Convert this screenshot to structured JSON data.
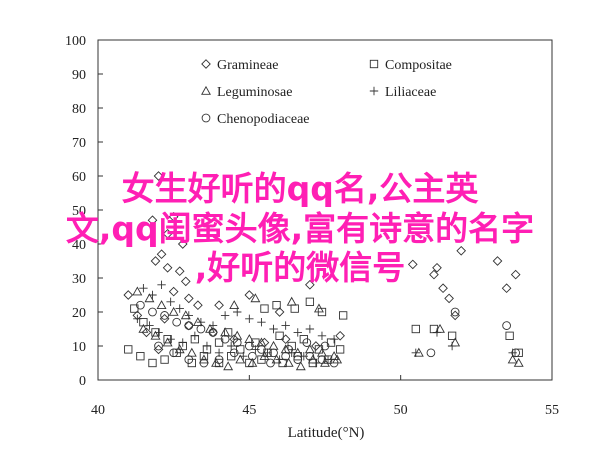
{
  "chart_data": {
    "type": "scatter",
    "xlabel": "Latitude(°N)",
    "ylabel": "",
    "xlim": [
      40,
      55
    ],
    "ylim": [
      0,
      100
    ],
    "xticks": [
      40,
      45,
      50,
      55
    ],
    "yticks": [
      0,
      10,
      20,
      30,
      40,
      50,
      60,
      70,
      80,
      90,
      100
    ],
    "grid": false,
    "legend_position": "top-center",
    "series": [
      {
        "name": "Gramineae",
        "marker": "diamond",
        "points": [
          [
            42.0,
            60
          ],
          [
            41.8,
            47
          ],
          [
            42.3,
            43
          ],
          [
            42.5,
            48
          ],
          [
            42.8,
            40
          ],
          [
            42.1,
            37
          ],
          [
            41.9,
            35
          ],
          [
            42.3,
            33
          ],
          [
            42.7,
            32
          ],
          [
            42.9,
            29
          ],
          [
            42.5,
            26
          ],
          [
            43.0,
            24
          ],
          [
            43.3,
            22
          ],
          [
            42.2,
            18
          ],
          [
            43.0,
            16
          ],
          [
            43.8,
            14
          ],
          [
            44.5,
            12
          ],
          [
            45.5,
            11
          ],
          [
            46.2,
            12
          ],
          [
            47.2,
            10
          ],
          [
            48.0,
            13
          ],
          [
            41.0,
            25
          ],
          [
            41.3,
            19
          ],
          [
            41.6,
            14
          ],
          [
            42.0,
            9
          ],
          [
            44.0,
            22
          ],
          [
            45.0,
            25
          ],
          [
            46.0,
            20
          ],
          [
            47.0,
            28
          ],
          [
            50.4,
            34
          ],
          [
            51.2,
            33
          ],
          [
            51.4,
            27
          ],
          [
            51.6,
            24
          ],
          [
            51.8,
            19
          ],
          [
            51.1,
            31
          ],
          [
            52.0,
            38
          ],
          [
            53.5,
            27
          ],
          [
            53.8,
            31
          ],
          [
            53.2,
            35
          ]
        ]
      },
      {
        "name": "Compositae",
        "marker": "square",
        "points": [
          [
            41.2,
            21
          ],
          [
            41.5,
            17
          ],
          [
            41.9,
            14
          ],
          [
            42.3,
            12
          ],
          [
            42.8,
            10
          ],
          [
            43.2,
            12
          ],
          [
            43.6,
            9
          ],
          [
            44.0,
            11
          ],
          [
            44.3,
            14
          ],
          [
            44.7,
            9
          ],
          [
            45.2,
            11
          ],
          [
            45.6,
            8
          ],
          [
            46.0,
            13
          ],
          [
            46.4,
            10
          ],
          [
            46.8,
            12
          ],
          [
            47.3,
            9
          ],
          [
            47.7,
            11
          ],
          [
            48.0,
            9
          ],
          [
            45.5,
            21
          ],
          [
            45.9,
            22
          ],
          [
            46.5,
            21
          ],
          [
            47.0,
            23
          ],
          [
            47.4,
            20
          ],
          [
            48.1,
            19
          ],
          [
            41.0,
            9
          ],
          [
            41.4,
            7
          ],
          [
            41.8,
            5
          ],
          [
            42.2,
            6
          ],
          [
            42.6,
            8
          ],
          [
            43.1,
            5
          ],
          [
            43.5,
            7
          ],
          [
            44.0,
            5
          ],
          [
            44.4,
            7
          ],
          [
            45.0,
            5
          ],
          [
            45.4,
            6
          ],
          [
            46.1,
            5
          ],
          [
            46.6,
            7
          ],
          [
            47.1,
            5
          ],
          [
            47.6,
            6
          ],
          [
            50.5,
            15
          ],
          [
            51.1,
            15
          ],
          [
            51.7,
            13
          ],
          [
            53.6,
            13
          ],
          [
            53.9,
            8
          ]
        ]
      },
      {
        "name": "Leguminosae",
        "marker": "triangle",
        "points": [
          [
            41.3,
            26
          ],
          [
            41.7,
            24
          ],
          [
            42.1,
            22
          ],
          [
            42.5,
            20
          ],
          [
            42.9,
            19
          ],
          [
            43.3,
            17
          ],
          [
            43.7,
            15
          ],
          [
            44.2,
            14
          ],
          [
            44.6,
            13
          ],
          [
            45.0,
            12
          ],
          [
            45.4,
            11
          ],
          [
            45.8,
            10
          ],
          [
            46.2,
            9
          ],
          [
            46.6,
            8
          ],
          [
            47.0,
            9
          ],
          [
            47.4,
            8
          ],
          [
            47.8,
            7
          ],
          [
            41.5,
            15
          ],
          [
            41.9,
            13
          ],
          [
            42.3,
            11
          ],
          [
            42.7,
            9
          ],
          [
            43.1,
            8
          ],
          [
            43.5,
            6
          ],
          [
            43.9,
            5
          ],
          [
            44.3,
            4
          ],
          [
            44.7,
            6
          ],
          [
            45.1,
            5
          ],
          [
            45.5,
            7
          ],
          [
            45.9,
            6
          ],
          [
            46.3,
            5
          ],
          [
            46.7,
            4
          ],
          [
            47.1,
            6
          ],
          [
            47.5,
            5
          ],
          [
            47.9,
            6
          ],
          [
            44.5,
            22
          ],
          [
            45.2,
            24
          ],
          [
            46.4,
            23
          ],
          [
            47.3,
            21
          ],
          [
            50.6,
            8
          ],
          [
            51.3,
            15
          ],
          [
            51.8,
            11
          ],
          [
            53.7,
            6
          ],
          [
            53.9,
            5
          ]
        ]
      },
      {
        "name": "Liliaceae",
        "marker": "plus",
        "points": [
          [
            41.5,
            27
          ],
          [
            41.8,
            25
          ],
          [
            42.1,
            28
          ],
          [
            42.4,
            23
          ],
          [
            42.7,
            21
          ],
          [
            43.0,
            19
          ],
          [
            43.4,
            17
          ],
          [
            43.8,
            16
          ],
          [
            44.2,
            19
          ],
          [
            44.6,
            20
          ],
          [
            45.0,
            18
          ],
          [
            45.4,
            17
          ],
          [
            45.8,
            15
          ],
          [
            46.2,
            16
          ],
          [
            46.6,
            14
          ],
          [
            47.0,
            15
          ],
          [
            47.4,
            13
          ],
          [
            47.8,
            12
          ],
          [
            41.3,
            18
          ],
          [
            41.7,
            16
          ],
          [
            42.0,
            14
          ],
          [
            42.4,
            12
          ],
          [
            42.8,
            11
          ],
          [
            43.2,
            13
          ],
          [
            43.6,
            10
          ],
          [
            44.0,
            8
          ],
          [
            44.4,
            10
          ],
          [
            44.8,
            7
          ],
          [
            45.2,
            9
          ],
          [
            45.6,
            8
          ],
          [
            46.0,
            6
          ],
          [
            46.4,
            8
          ],
          [
            46.8,
            7
          ],
          [
            47.2,
            5
          ],
          [
            47.6,
            6
          ],
          [
            50.5,
            8
          ],
          [
            51.2,
            14
          ],
          [
            51.7,
            10
          ],
          [
            53.7,
            8
          ]
        ]
      },
      {
        "name": "Chenopodiaceae",
        "marker": "circle",
        "points": [
          [
            41.4,
            22
          ],
          [
            41.8,
            20
          ],
          [
            42.2,
            19
          ],
          [
            42.6,
            17
          ],
          [
            43.0,
            16
          ],
          [
            43.4,
            15
          ],
          [
            43.8,
            14
          ],
          [
            44.2,
            12
          ],
          [
            44.6,
            11
          ],
          [
            45.0,
            10
          ],
          [
            45.4,
            9
          ],
          [
            45.8,
            8
          ],
          [
            46.2,
            7
          ],
          [
            46.6,
            6
          ],
          [
            47.0,
            7
          ],
          [
            47.4,
            6
          ],
          [
            47.8,
            5
          ],
          [
            42.0,
            10
          ],
          [
            42.5,
            8
          ],
          [
            43.0,
            6
          ],
          [
            43.5,
            5
          ],
          [
            44.0,
            6
          ],
          [
            44.5,
            8
          ],
          [
            45.1,
            7
          ],
          [
            45.7,
            5
          ],
          [
            46.3,
            9
          ],
          [
            46.9,
            11
          ],
          [
            47.5,
            10
          ],
          [
            51.0,
            8
          ],
          [
            51.8,
            20
          ],
          [
            53.5,
            16
          ],
          [
            53.8,
            8
          ]
        ]
      }
    ],
    "overlay_text": "女生好听的qq名,公主英文,qq闺蜜头像,富有诗意的名字,好听的微信号"
  }
}
